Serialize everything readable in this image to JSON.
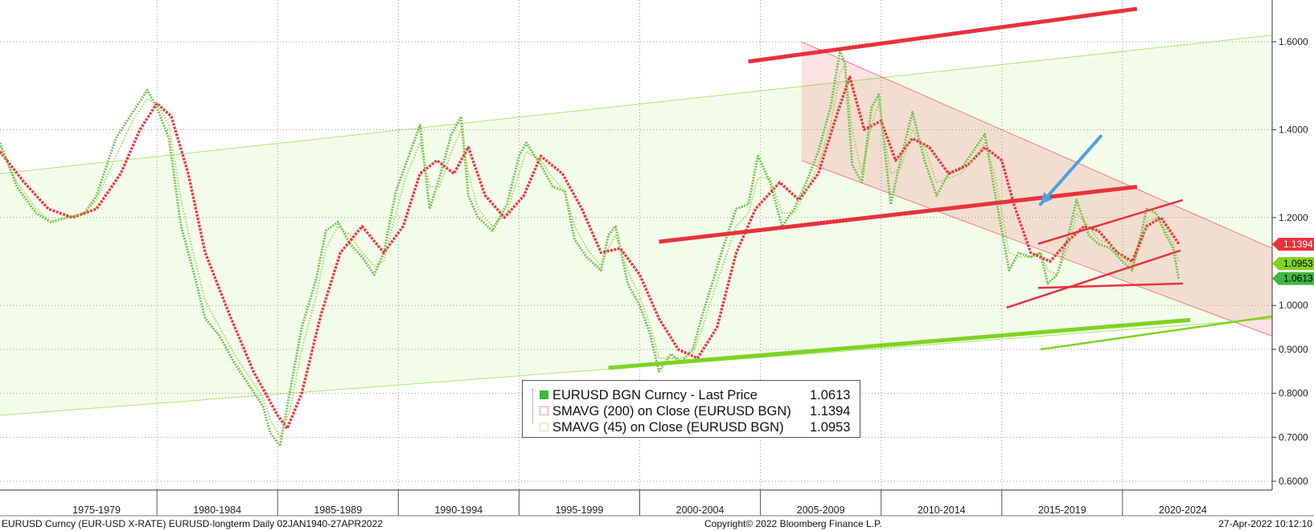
{
  "chart_data": {
    "type": "line",
    "title": "",
    "xlabel": "",
    "ylabel": "",
    "xlim": [
      1973.5,
      2026.2
    ],
    "ylim": [
      0.58,
      1.695
    ],
    "y_ticks": [
      "0.6000",
      "0.7000",
      "0.8000",
      "0.9000",
      "1.0000",
      "1.2000",
      "1.4000",
      "1.6000"
    ],
    "x_periods": [
      "1975-1979",
      "1980-1984",
      "1985-1989",
      "1990-1994",
      "1995-1999",
      "2000-2004",
      "2005-2009",
      "2010-2014",
      "2015-2019",
      "2020-2024"
    ],
    "grid": true,
    "legend_position": "bottom-center",
    "series": [
      {
        "name": "EURUSD BGN Curncy - Last Price",
        "last_value": "1.0613",
        "color": "#6cc24a",
        "x": [
          1973.5,
          1974.2,
          1975.0,
          1975.6,
          1976.3,
          1977.0,
          1977.5,
          1978.3,
          1979.0,
          1979.6,
          1980.0,
          1980.5,
          1981.0,
          1981.5,
          1982.0,
          1982.6,
          1983.2,
          1983.8,
          1984.4,
          1984.7,
          1985.1,
          1985.5,
          1986.0,
          1986.6,
          1987.0,
          1987.5,
          1988.0,
          1988.5,
          1989.0,
          1989.4,
          1989.9,
          1990.3,
          1990.9,
          1991.3,
          1991.7,
          1992.2,
          1992.6,
          1992.9,
          1993.3,
          1993.9,
          1994.5,
          1995.0,
          1995.3,
          1995.9,
          1996.4,
          1996.9,
          1997.3,
          1997.8,
          1998.4,
          1998.7,
          1999.0,
          1999.5,
          2000.0,
          2000.4,
          2000.8,
          2001.3,
          2001.7,
          2002.2,
          2002.6,
          2003.0,
          2003.5,
          2004.0,
          2004.5,
          2004.9,
          2005.4,
          2005.9,
          2006.4,
          2006.9,
          2007.4,
          2007.9,
          2008.3,
          2008.5,
          2008.8,
          2009.2,
          2009.6,
          2009.9,
          2010.4,
          2010.8,
          2011.3,
          2011.8,
          2012.3,
          2012.8,
          2013.3,
          2013.8,
          2014.3,
          2014.7,
          2015.0,
          2015.3,
          2015.7,
          2016.2,
          2016.6,
          2016.9,
          2017.3,
          2017.8,
          2018.1,
          2018.6,
          2019.0,
          2019.5,
          2020.0,
          2020.4,
          2020.8,
          2021.0,
          2021.4,
          2021.8,
          2022.1,
          2022.33
        ],
        "y": [
          1.37,
          1.27,
          1.21,
          1.19,
          1.2,
          1.21,
          1.25,
          1.38,
          1.44,
          1.49,
          1.45,
          1.38,
          1.18,
          1.08,
          0.97,
          0.93,
          0.87,
          0.82,
          0.77,
          0.71,
          0.68,
          0.8,
          0.95,
          1.06,
          1.17,
          1.19,
          1.14,
          1.11,
          1.07,
          1.12,
          1.26,
          1.32,
          1.41,
          1.22,
          1.29,
          1.39,
          1.43,
          1.25,
          1.2,
          1.17,
          1.23,
          1.34,
          1.37,
          1.32,
          1.27,
          1.26,
          1.15,
          1.11,
          1.08,
          1.16,
          1.18,
          1.05,
          1.0,
          0.94,
          0.85,
          0.89,
          0.87,
          0.9,
          0.98,
          1.05,
          1.14,
          1.22,
          1.23,
          1.34,
          1.28,
          1.18,
          1.22,
          1.28,
          1.35,
          1.45,
          1.58,
          1.55,
          1.32,
          1.28,
          1.45,
          1.48,
          1.23,
          1.33,
          1.44,
          1.33,
          1.25,
          1.3,
          1.31,
          1.35,
          1.39,
          1.26,
          1.17,
          1.08,
          1.12,
          1.11,
          1.12,
          1.05,
          1.07,
          1.17,
          1.24,
          1.16,
          1.14,
          1.13,
          1.1,
          1.08,
          1.17,
          1.22,
          1.21,
          1.16,
          1.13,
          1.06
        ]
      },
      {
        "name": "SMAVG (200)  on Close (EURUSD BGN)",
        "last_value": "1.1394",
        "color": "#e8323c",
        "x": [
          1973.5,
          1974.5,
          1975.5,
          1976.5,
          1977.5,
          1978.5,
          1979.3,
          1980.0,
          1980.6,
          1981.3,
          1982.0,
          1983.0,
          1984.0,
          1985.0,
          1985.4,
          1986.0,
          1986.8,
          1987.6,
          1988.5,
          1989.4,
          1990.2,
          1990.9,
          1991.6,
          1992.3,
          1992.9,
          1993.6,
          1994.4,
          1995.2,
          1995.9,
          1996.8,
          1997.6,
          1998.4,
          1999.2,
          2000.0,
          2000.8,
          2001.6,
          2002.4,
          2003.2,
          2004.0,
          2004.8,
          2005.8,
          2006.6,
          2007.4,
          2008.2,
          2008.7,
          2009.3,
          2010.0,
          2010.6,
          2011.3,
          2012.0,
          2012.8,
          2013.6,
          2014.3,
          2015.0,
          2015.5,
          2016.2,
          2017.0,
          2017.8,
          2018.4,
          2019.0,
          2019.8,
          2020.4,
          2021.0,
          2021.6,
          2022.33
        ],
        "y": [
          1.35,
          1.28,
          1.22,
          1.2,
          1.22,
          1.3,
          1.4,
          1.46,
          1.43,
          1.3,
          1.12,
          0.98,
          0.85,
          0.75,
          0.72,
          0.8,
          0.98,
          1.12,
          1.18,
          1.12,
          1.18,
          1.3,
          1.33,
          1.3,
          1.36,
          1.25,
          1.2,
          1.25,
          1.34,
          1.3,
          1.22,
          1.12,
          1.13,
          1.07,
          0.97,
          0.9,
          0.88,
          0.95,
          1.12,
          1.22,
          1.28,
          1.24,
          1.3,
          1.44,
          1.52,
          1.4,
          1.42,
          1.33,
          1.38,
          1.36,
          1.3,
          1.32,
          1.36,
          1.33,
          1.23,
          1.12,
          1.1,
          1.15,
          1.18,
          1.17,
          1.12,
          1.1,
          1.18,
          1.2,
          1.14
        ]
      },
      {
        "name": "SMAVG (45)  on Close (EURUSD BGN)",
        "last_value": "1.0953",
        "color": "#97d23a",
        "x": [
          1973.5,
          1974.2,
          1975.0,
          1975.6,
          1976.3,
          1977.0,
          1977.5,
          1978.3,
          1979.0,
          1979.6,
          1980.0,
          1980.5,
          1981.0,
          1981.5,
          1982.0,
          1982.6,
          1983.2,
          1983.8,
          1984.4,
          1984.7,
          1985.1,
          1985.5,
          1986.0,
          1986.6,
          1987.0,
          1987.5,
          1988.0,
          1988.5,
          1989.0,
          1989.4,
          1989.9,
          1990.3,
          1990.9,
          1991.3,
          1991.7,
          1992.2,
          1992.6,
          1992.9,
          1993.3,
          1993.9,
          1994.5,
          1995.0,
          1995.3,
          1995.9,
          1996.4,
          1996.9,
          1997.3,
          1997.8,
          1998.4,
          1998.7,
          1999.0,
          1999.5,
          2000.0,
          2000.4,
          2000.8,
          2001.3,
          2001.7,
          2002.2,
          2002.6,
          2003.0,
          2003.5,
          2004.0,
          2004.5,
          2004.9,
          2005.4,
          2005.9,
          2006.4,
          2006.9,
          2007.4,
          2007.9,
          2008.3,
          2008.5,
          2008.8,
          2009.2,
          2009.6,
          2009.9,
          2010.4,
          2010.8,
          2011.3,
          2011.8,
          2012.3,
          2012.8,
          2013.3,
          2013.8,
          2014.3,
          2014.7,
          2015.0,
          2015.3,
          2015.7,
          2016.2,
          2016.6,
          2016.9,
          2017.3,
          2017.8,
          2018.1,
          2018.6,
          2019.0,
          2019.5,
          2020.0,
          2020.4,
          2020.8,
          2021.0,
          2021.4,
          2021.8,
          2022.1,
          2022.33
        ],
        "y": [
          1.36,
          1.28,
          1.22,
          1.19,
          1.2,
          1.21,
          1.24,
          1.34,
          1.42,
          1.47,
          1.46,
          1.41,
          1.24,
          1.12,
          1.01,
          0.95,
          0.89,
          0.84,
          0.79,
          0.74,
          0.7,
          0.76,
          0.9,
          1.02,
          1.13,
          1.18,
          1.16,
          1.12,
          1.09,
          1.1,
          1.21,
          1.29,
          1.37,
          1.27,
          1.27,
          1.35,
          1.4,
          1.3,
          1.22,
          1.18,
          1.21,
          1.3,
          1.35,
          1.33,
          1.29,
          1.26,
          1.18,
          1.13,
          1.09,
          1.13,
          1.16,
          1.08,
          1.02,
          0.96,
          0.88,
          0.88,
          0.88,
          0.89,
          0.95,
          1.02,
          1.1,
          1.18,
          1.21,
          1.29,
          1.29,
          1.21,
          1.21,
          1.26,
          1.32,
          1.41,
          1.53,
          1.55,
          1.4,
          1.3,
          1.41,
          1.46,
          1.3,
          1.31,
          1.4,
          1.36,
          1.28,
          1.29,
          1.3,
          1.33,
          1.37,
          1.3,
          1.21,
          1.12,
          1.11,
          1.11,
          1.12,
          1.08,
          1.07,
          1.14,
          1.21,
          1.18,
          1.15,
          1.14,
          1.11,
          1.09,
          1.14,
          1.19,
          1.2,
          1.17,
          1.14,
          1.1
        ]
      }
    ],
    "overlays": [
      {
        "kind": "line",
        "color": "#e8323c",
        "x": [
          2004.5,
          2020.6
        ],
        "y": [
          1.555,
          1.675
        ]
      },
      {
        "kind": "line",
        "color": "#e8323c",
        "x": [
          2000.8,
          2020.6
        ],
        "y": [
          1.145,
          1.27
        ]
      },
      {
        "kind": "line",
        "color": "#e8323c",
        "x": [
          2015.2,
          2022.4
        ],
        "y": [
          0.995,
          1.125
        ]
      },
      {
        "kind": "line",
        "color": "#7ed321",
        "x": [
          1998.7,
          2022.8
        ],
        "y": [
          0.858,
          0.967
        ]
      },
      {
        "kind": "line",
        "color": "#7ed321",
        "x": [
          2016.6,
          2026.2
        ],
        "y": [
          0.9,
          0.975
        ]
      },
      {
        "kind": "line",
        "color": "#e8323c",
        "x": [
          2016.5,
          2022.5
        ],
        "y": [
          1.14,
          1.24
        ]
      },
      {
        "kind": "line",
        "color": "#e8323c",
        "x": [
          2016.5,
          2022.5
        ],
        "y": [
          1.04,
          1.05
        ]
      },
      {
        "kind": "arrow",
        "color": "#4aa3df",
        "x": [
          2019.1,
          2016.6
        ],
        "y": [
          1.385,
          1.23
        ]
      }
    ],
    "channels": [
      {
        "color": "#7ed321",
        "x": [
          1973.5,
          2026.2
        ],
        "upper": [
          1.3,
          1.615
        ],
        "lower": [
          0.75,
          0.97
        ]
      },
      {
        "color": "#e8323c",
        "x": [
          2006.7,
          2026.2
        ],
        "upper": [
          1.6,
          1.13
        ],
        "lower": [
          1.33,
          0.93
        ]
      }
    ]
  },
  "last_value_tags": [
    {
      "value": "1.1394",
      "color": "#e8323c"
    },
    {
      "value": "1.0953",
      "color": "#7ed321"
    },
    {
      "value": "1.0613",
      "color": "#3fb83f"
    }
  ],
  "legend": {
    "rows": [
      {
        "name": "EURUSD BGN Curncy - Last Price",
        "value": "1.0613",
        "swatch": "#3fb83f"
      },
      {
        "name": "SMAVG (200)  on Close (EURUSD BGN)",
        "value": "1.1394",
        "swatch": "#e8323c"
      },
      {
        "name": "SMAVG (45)  on Close (EURUSD BGN)",
        "value": "1.0953",
        "swatch": "#97d23a"
      }
    ]
  },
  "footer": {
    "left": "EURUSD Curncy (EUR-USD X-RATE) EURUSD-longterm  Daily 02JAN1940-27APR2022",
    "center": "Copyright© 2022 Bloomberg Finance L.P.",
    "right": "27-Apr-2022 10:12:10"
  }
}
